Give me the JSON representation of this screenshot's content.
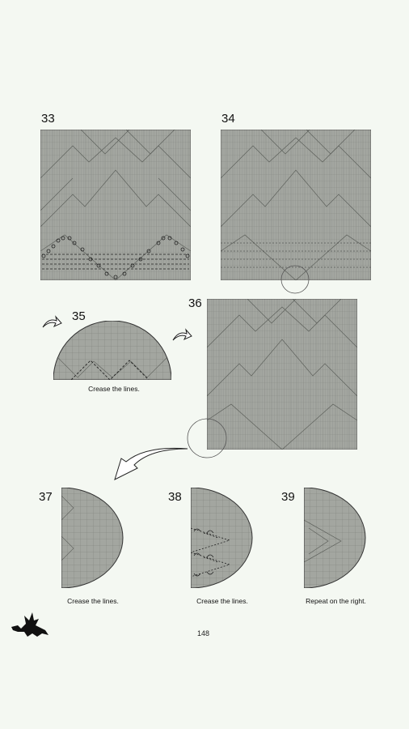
{
  "steps": {
    "s33": {
      "number": "33"
    },
    "s34": {
      "number": "34"
    },
    "s35": {
      "number": "35",
      "caption": "Crease the lines."
    },
    "s36": {
      "number": "36"
    },
    "s37": {
      "number": "37",
      "caption": "Crease the lines."
    },
    "s38": {
      "number": "38",
      "caption": "Crease the lines."
    },
    "s39": {
      "number": "39",
      "caption": "Repeat on the right."
    }
  },
  "page_number": "148",
  "colors": {
    "paper": "#a3a6a0",
    "line": "#6b6e69",
    "outline": "#222222",
    "background": "#f4f8f2"
  },
  "icons": [
    "curved-arrow-icon",
    "dragon-logo-icon",
    "zoom-circle-icon"
  ]
}
